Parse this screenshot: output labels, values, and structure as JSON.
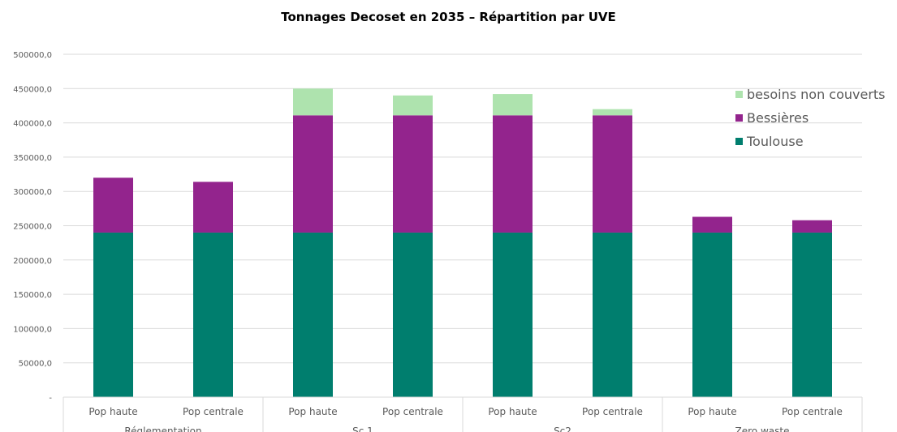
{
  "chart_data": {
    "type": "bar",
    "stacked": true,
    "title": "Tonnages Decoset en 2035 – Répartition par UVE",
    "xlabel": "",
    "ylabel": "",
    "ylim": [
      0,
      500000
    ],
    "yticks": [
      "-",
      "50000,0",
      "100000,0",
      "150000,0",
      "200000,0",
      "250000,0",
      "300000,0",
      "350000,0",
      "400000,0",
      "450000,0",
      "500000,0"
    ],
    "grid": true,
    "legend_position": "right",
    "groups": [
      {
        "label": "Réglementation",
        "categories": [
          "Pop haute",
          "Pop centrale"
        ]
      },
      {
        "label": "Sc 1",
        "categories": [
          "Pop haute",
          "Pop centrale"
        ]
      },
      {
        "label": "Sc2",
        "categories": [
          "Pop haute",
          "Pop centrale"
        ]
      },
      {
        "label": "Zero waste",
        "categories": [
          "Pop haute",
          "Pop centrale"
        ]
      }
    ],
    "categories": [
      "Pop haute",
      "Pop centrale",
      "Pop haute",
      "Pop centrale",
      "Pop haute",
      "Pop centrale",
      "Pop haute",
      "Pop centrale"
    ],
    "series": [
      {
        "name": "Toulouse",
        "color": "#007E6E",
        "values": [
          240000,
          240000,
          240000,
          240000,
          240000,
          240000,
          240000,
          240000
        ]
      },
      {
        "name": "Bessières",
        "color": "#93248D",
        "values": [
          80000,
          74000,
          171000,
          171000,
          171000,
          171000,
          23000,
          18000
        ]
      },
      {
        "name": "besoins non couverts",
        "color": "#AEE3AE",
        "values": [
          0,
          0,
          39000,
          29000,
          31000,
          9000,
          0,
          0
        ]
      }
    ],
    "legend_order": [
      "besoins non couverts",
      "Bessières",
      "Toulouse"
    ]
  }
}
